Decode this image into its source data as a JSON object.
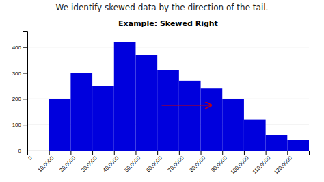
{
  "chart_data": {
    "type": "histogram",
    "title": "Example: Skewed Right",
    "subtitle": "We identify skewed data by the direction of the tail.",
    "bins": [
      10000,
      20000,
      30000,
      40000,
      50000,
      60000,
      70000,
      80000,
      90000,
      100000,
      110000,
      120000,
      130000
    ],
    "counts": [
      200,
      300,
      250,
      420,
      370,
      310,
      270,
      240,
      200,
      120,
      60,
      40
    ],
    "color": "#0000DD",
    "xlim": [
      0,
      130000
    ],
    "xticks": [
      0,
      {
        "value": 10000,
        "label": "10,0000"
      },
      {
        "value": 20000,
        "label": "20,0000"
      },
      {
        "value": 30000,
        "label": "30,0000"
      },
      {
        "value": 40000,
        "label": "40,0000"
      },
      {
        "value": 50000,
        "label": "50,0000"
      },
      {
        "value": 60000,
        "label": "60,0000"
      },
      {
        "value": 70000,
        "label": "70,0000"
      },
      {
        "value": 80000,
        "label": "80,0000"
      },
      {
        "value": 90000,
        "label": "90,0000"
      },
      {
        "value": 100000,
        "label": "100,0000"
      },
      {
        "value": 110000,
        "label": "110,0000"
      },
      {
        "value": 120000,
        "label": "120,0000"
      }
    ],
    "ylim": [
      0,
      460
    ],
    "yticks": [
      0,
      100,
      200,
      300,
      400
    ],
    "grid": true,
    "annotations": [
      {
        "type": "arrow",
        "x_start": 62000,
        "x_end": 85000,
        "y": 175,
        "color": "#cc0000"
      }
    ]
  }
}
